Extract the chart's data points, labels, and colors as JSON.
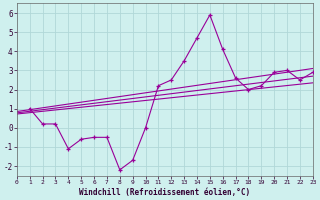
{
  "xlabel": "Windchill (Refroidissement éolien,°C)",
  "bg_color": "#cff0ee",
  "line_color": "#990099",
  "grid_color": "#b0d8d8",
  "x_data": [
    1,
    2,
    3,
    4,
    5,
    6,
    7,
    8,
    9,
    10,
    11,
    12,
    13,
    14,
    15,
    16,
    17,
    18,
    19,
    20,
    21,
    22,
    23
  ],
  "y_data": [
    1.0,
    0.2,
    0.2,
    -1.1,
    -0.6,
    -0.5,
    -0.5,
    -2.2,
    -1.7,
    0.0,
    2.2,
    2.5,
    3.5,
    4.7,
    5.9,
    4.1,
    2.6,
    2.0,
    2.2,
    2.9,
    3.0,
    2.5,
    2.9
  ],
  "reg_lines": [
    {
      "x0": 0,
      "x1": 23,
      "y0": 0.85,
      "y1": 3.1
    },
    {
      "x0": 0,
      "x1": 23,
      "y0": 0.78,
      "y1": 2.7
    },
    {
      "x0": 0,
      "x1": 23,
      "y0": 0.72,
      "y1": 2.35
    }
  ],
  "xlim": [
    0,
    23
  ],
  "ylim": [
    -2.5,
    6.5
  ],
  "yticks": [
    -2,
    -1,
    0,
    1,
    2,
    3,
    4,
    5,
    6
  ],
  "xticks": [
    0,
    1,
    2,
    3,
    4,
    5,
    6,
    7,
    8,
    9,
    10,
    11,
    12,
    13,
    14,
    15,
    16,
    17,
    18,
    19,
    20,
    21,
    22,
    23
  ]
}
